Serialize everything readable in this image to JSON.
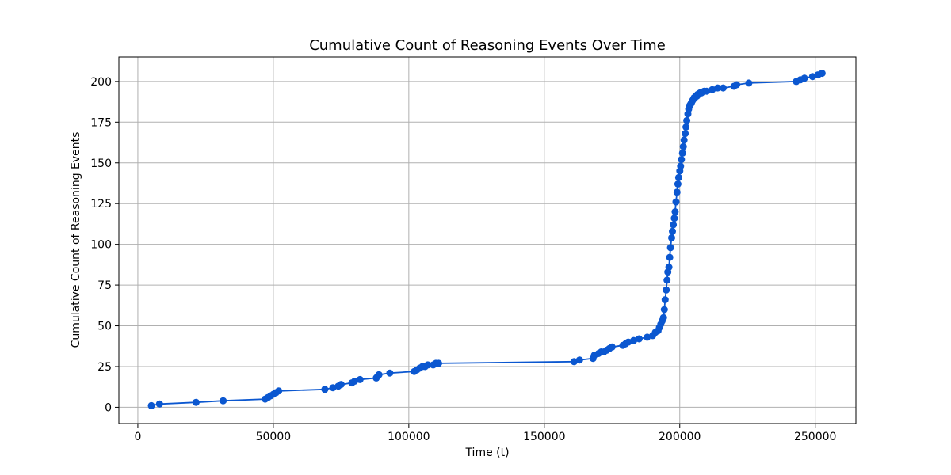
{
  "chart_data": {
    "type": "line",
    "title": "Cumulative Count of Reasoning Events Over Time",
    "xlabel": "Time (t)",
    "ylabel": "Cumulative Count of Reasoning Events",
    "xlim": [
      -7000,
      265000
    ],
    "ylim": [
      -10,
      215
    ],
    "xticks": [
      0,
      50000,
      100000,
      150000,
      200000,
      250000
    ],
    "xtick_labels": [
      "0",
      "50000",
      "100000",
      "150000",
      "200000",
      "250000"
    ],
    "yticks": [
      0,
      25,
      50,
      75,
      100,
      125,
      150,
      175,
      200
    ],
    "ytick_labels": [
      "0",
      "25",
      "50",
      "75",
      "100",
      "125",
      "150",
      "175",
      "200"
    ],
    "grid": true,
    "color": "#0b57d0",
    "series": [
      {
        "x": [
          5000,
          8000,
          21500,
          31500,
          47000,
          48000,
          49000,
          50000,
          51000,
          52000,
          69000,
          72000,
          74000,
          75000,
          79000,
          80000,
          82000,
          88000,
          88500,
          89000,
          93000,
          102000,
          103000,
          104000,
          105000,
          106000,
          107000,
          109000,
          110000,
          111000,
          161000,
          163000,
          168000,
          168500,
          170000,
          171000,
          172000,
          173000,
          174000,
          175000,
          179000,
          180000,
          181000,
          183000,
          185000,
          188000,
          190000,
          191000,
          192000,
          192500,
          193000,
          193500,
          194000,
          194300,
          194600,
          195000,
          195300,
          195600,
          196000,
          196300,
          196600,
          197000,
          197300,
          197600,
          198000,
          198300,
          198600,
          199000,
          199300,
          199600,
          200000,
          200300,
          200600,
          201000,
          201300,
          201600,
          202000,
          202300,
          202600,
          203000,
          203300,
          203600,
          204000,
          204300,
          204600,
          205000,
          205300,
          205600,
          206000,
          206300,
          206600,
          207000,
          207500,
          208000,
          209000,
          210000,
          212000,
          214000,
          216000,
          220000,
          221000,
          225500,
          243000,
          244500,
          246000,
          249000,
          251000,
          252500
        ],
        "y": [
          1,
          2,
          3,
          4,
          5,
          6,
          7,
          8,
          9,
          10,
          11,
          12,
          13,
          14,
          15,
          16,
          17,
          18,
          19,
          20,
          21,
          22,
          23,
          24,
          25,
          25,
          26,
          26,
          27,
          27,
          28,
          29,
          30,
          32,
          33,
          34,
          34,
          35,
          36,
          37,
          38,
          39,
          40,
          41,
          42,
          43,
          44,
          46,
          47,
          49,
          51,
          53,
          55,
          60,
          66,
          72,
          78,
          83,
          86,
          92,
          98,
          104,
          108,
          112,
          116,
          120,
          126,
          132,
          137,
          141,
          145,
          148,
          152,
          156,
          160,
          164,
          168,
          172,
          176,
          180,
          183,
          185,
          186,
          187,
          188,
          189,
          190,
          190,
          191,
          191,
          192,
          192,
          193,
          193,
          194,
          194,
          195,
          196,
          196,
          197,
          198,
          199,
          200,
          201,
          202,
          203,
          204,
          205
        ]
      }
    ]
  }
}
